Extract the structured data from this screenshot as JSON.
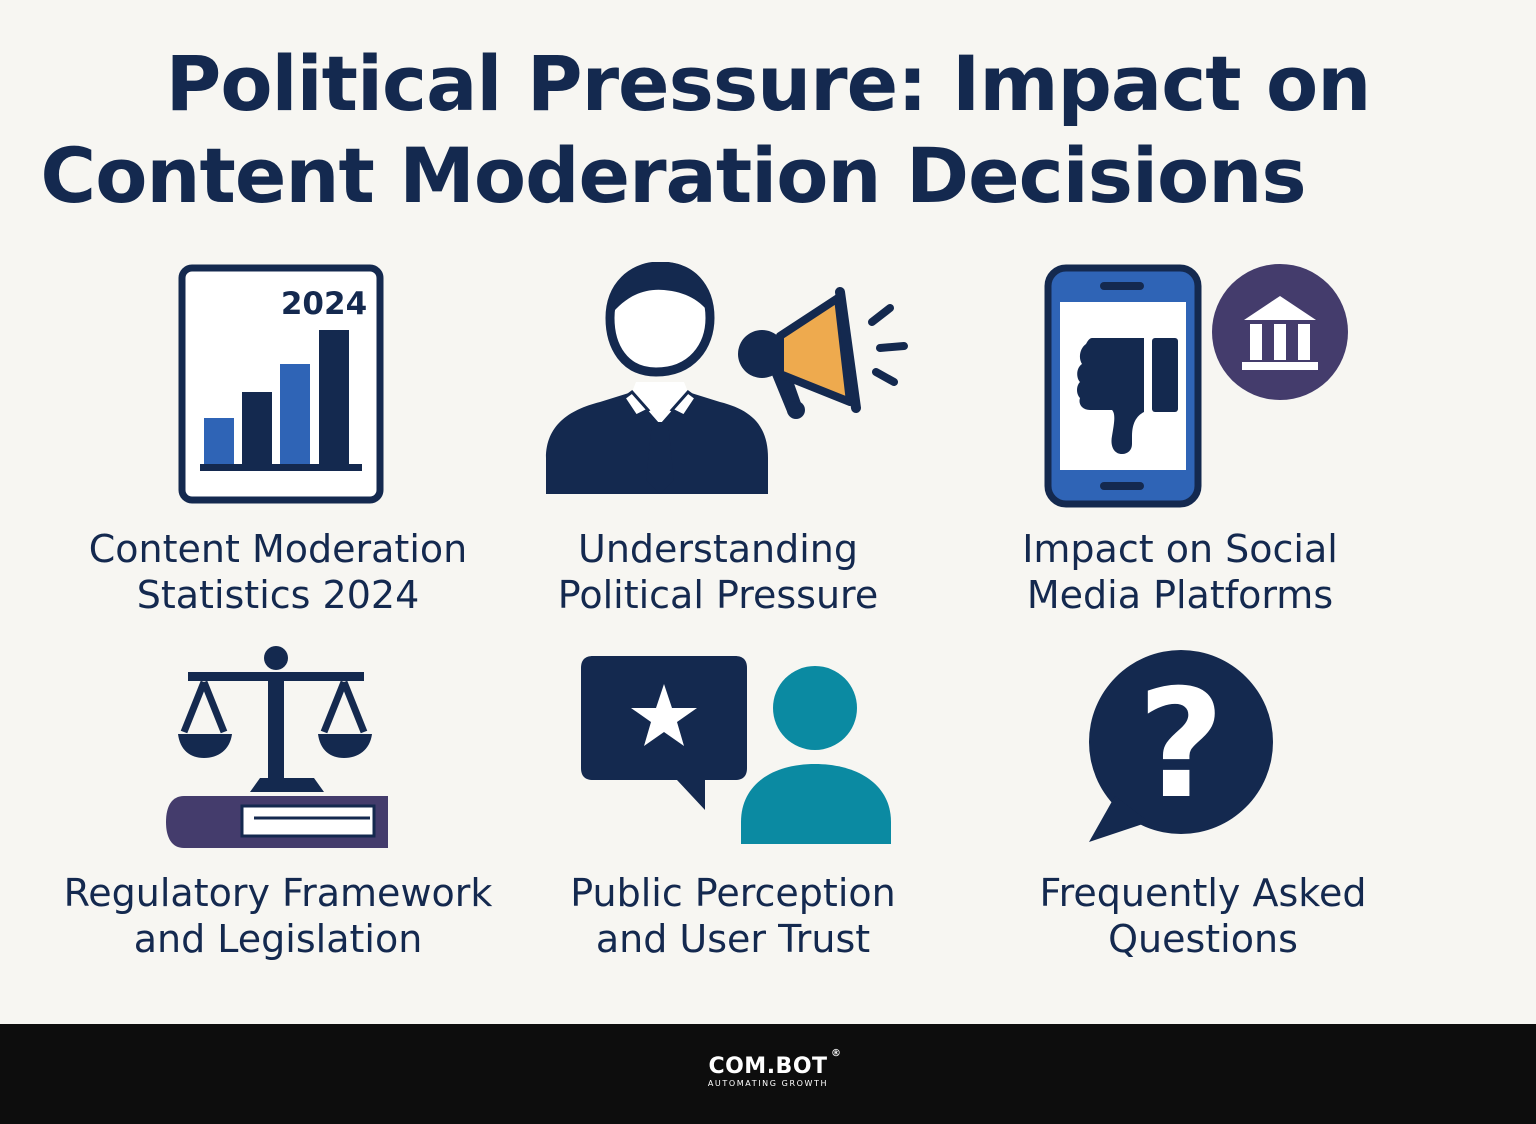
{
  "title": {
    "line1": "Political Pressure: Impact on",
    "line2": "Content Moderation Decisions"
  },
  "cards": [
    {
      "id": "stats",
      "line1": "Content Moderation",
      "line2": "Statistics 2024",
      "icon": "bar-chart-icon",
      "badge": "2024"
    },
    {
      "id": "pressure",
      "line1": "Understanding",
      "line2": "Political Pressure",
      "icon": "politician-megaphone-icon"
    },
    {
      "id": "social",
      "line1": "Impact on Social",
      "line2": "Media Platforms",
      "icon": "phone-thumbs-down-icon"
    },
    {
      "id": "reg",
      "line1": "Regulatory Framework",
      "line2": "and Legislation",
      "icon": "scales-of-justice-icon"
    },
    {
      "id": "trust",
      "line1": "Public Perception",
      "line2": "and User Trust",
      "icon": "review-user-icon"
    },
    {
      "id": "faq",
      "line1": "Frequently Asked",
      "line2": "Questions",
      "icon": "question-bubble-icon"
    }
  ],
  "footer": {
    "brand": "COM.BOT",
    "registered": "®",
    "tagline": "AUTOMATING GROWTH"
  },
  "colors": {
    "navy": "#14294f",
    "blue": "#2f64b6",
    "orange": "#eeaa4e",
    "purple": "#443c6c",
    "teal": "#0b8aa2",
    "background": "#f7f6f2",
    "footer": "#0d0d0d"
  }
}
